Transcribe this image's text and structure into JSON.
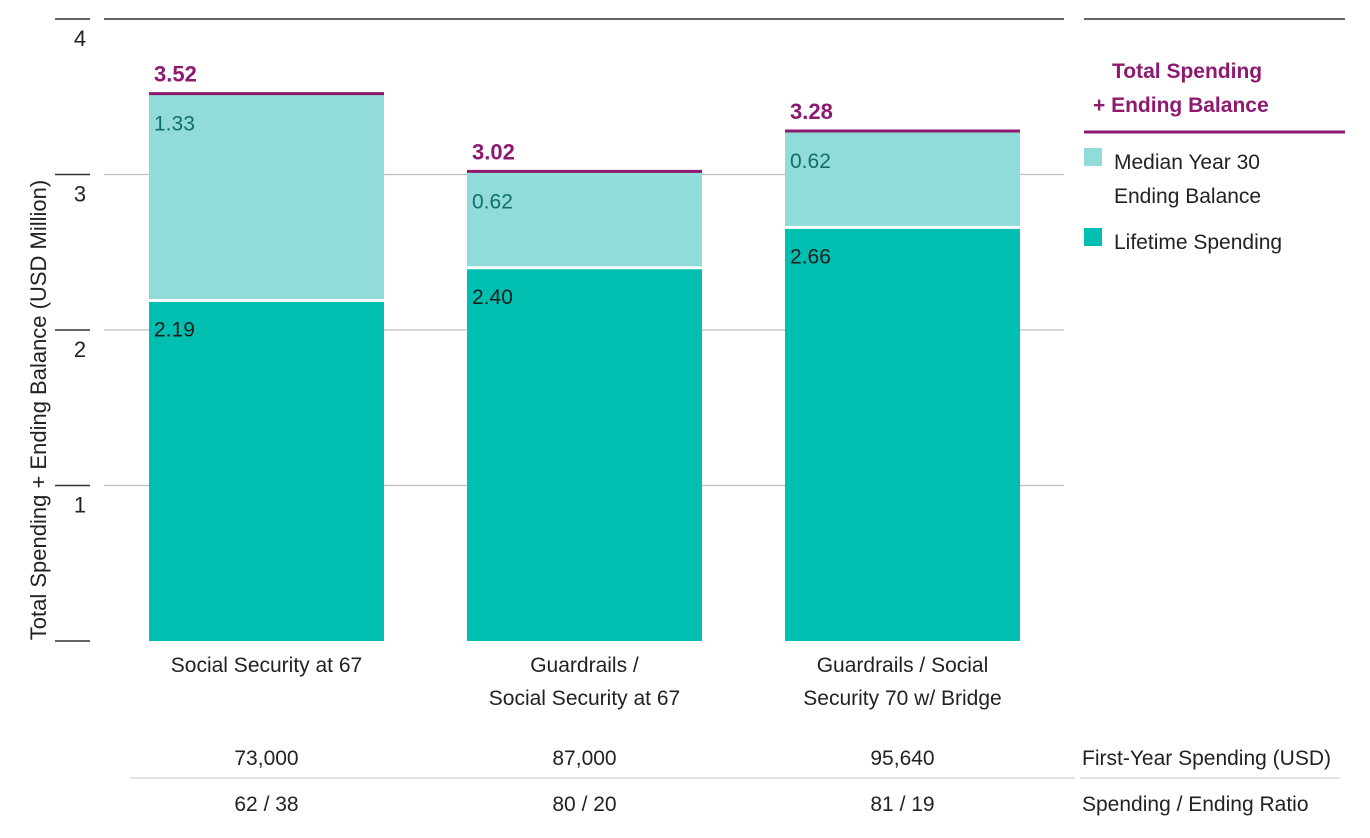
{
  "chart_data": {
    "type": "bar",
    "stacked": true,
    "title": "",
    "ylabel": "Total Spending + Ending Balance (USD Million)",
    "xlabel": "",
    "ylim": [
      0,
      4
    ],
    "yticks": [
      1,
      2,
      3,
      4
    ],
    "ytick_labels": [
      "1",
      "2",
      "3",
      "4"
    ],
    "grid": true,
    "categories": [
      [
        "Social Security at 67"
      ],
      [
        "Guardrails /",
        "Social Security at 67"
      ],
      [
        "Guardrails / Social",
        "Security 70 w/ Bridge"
      ]
    ],
    "series": [
      {
        "name": "Lifetime Spending",
        "color": "#00bfb0",
        "values": [
          2.19,
          2.4,
          2.66
        ],
        "labels": [
          "2.19",
          "2.40",
          "2.66"
        ]
      },
      {
        "name": "Median Year 30 Ending Balance",
        "color": "#91dcd9",
        "values": [
          1.33,
          0.62,
          0.62
        ],
        "labels": [
          "1.33",
          "0.62",
          "0.62"
        ]
      }
    ],
    "totals": [
      3.52,
      3.02,
      3.28
    ],
    "total_labels": [
      "3.52",
      "3.02",
      "3.28"
    ],
    "total_color": "#8e1a70",
    "legend": {
      "position": "right",
      "title_lines": [
        "Total Spending",
        "+ Ending Balance"
      ],
      "items": [
        {
          "label_lines": [
            "Median Year 30",
            "Ending Balance"
          ],
          "color": "#91dcd9"
        },
        {
          "label_lines": [
            "Lifetime Spending"
          ],
          "color": "#00bfb0"
        }
      ]
    },
    "table": [
      {
        "label": "First-Year Spending (USD)",
        "values": [
          "73,000",
          "87,000",
          "95,640"
        ]
      },
      {
        "label": "Spending / Ending Ratio",
        "values": [
          "62 / 38",
          "80 / 20",
          "81 / 19"
        ]
      }
    ]
  }
}
